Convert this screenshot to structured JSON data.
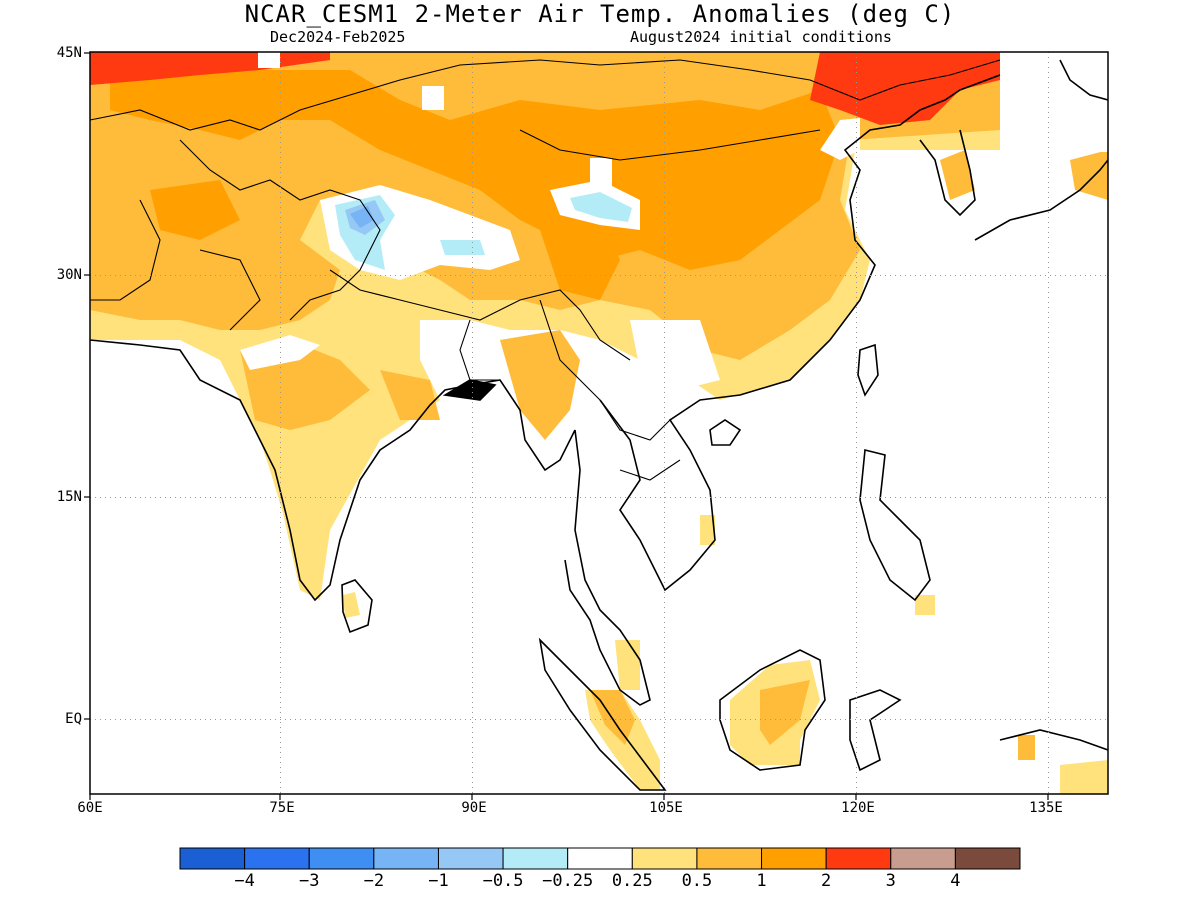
{
  "header": {
    "title": "NCAR_CESM1 2-Meter Air Temp. Anomalies (deg C)",
    "subtitle_left": "Dec2024-Feb2025",
    "subtitle_right": "August2024 initial conditions"
  },
  "map": {
    "lon_range": [
      60,
      140
    ],
    "lat_range": [
      -6,
      45
    ],
    "lat_ticks": [
      {
        "lat": 45,
        "label": "45N"
      },
      {
        "lat": 30,
        "label": "30N"
      },
      {
        "lat": 15,
        "label": "15N"
      },
      {
        "lat": 0,
        "label": "EQ"
      }
    ],
    "lon_ticks": [
      {
        "lon": 60,
        "label": "60E"
      },
      {
        "lon": 75,
        "label": "75E"
      },
      {
        "lon": 90,
        "label": "90E"
      },
      {
        "lon": 105,
        "label": "105E"
      },
      {
        "lon": 120,
        "label": "120E"
      },
      {
        "lon": 135,
        "label": "135E"
      }
    ],
    "gridlines": "dotted",
    "ocean_masked": true
  },
  "colorbar": {
    "colors": [
      "#1a5fd4",
      "#2b72f0",
      "#3f8ef2",
      "#76b4f5",
      "#96c8f6",
      "#b3ecf7",
      "#ffffff",
      "#ffe27c",
      "#ffbb3a",
      "#ff9f00",
      "#ff3a10",
      "#c89d90",
      "#7a4a3d"
    ],
    "labels": [
      "-4",
      "-3",
      "-2",
      "-1",
      "-0.5",
      "-0.25",
      "0.25",
      "0.5",
      "1",
      "2",
      "3",
      "4"
    ]
  },
  "colors": {
    "warm_0.25_0.5": "#ffe27c",
    "warm_0.5_1": "#ffbb3a",
    "warm_1_2": "#ff9f00",
    "warm_2_3": "#ff3a10",
    "cool_-0.5_-0.25": "#b3ecf7",
    "cool_-1_-0.5": "#96c8f6",
    "cool_-2_-1": "#76b4f5"
  }
}
